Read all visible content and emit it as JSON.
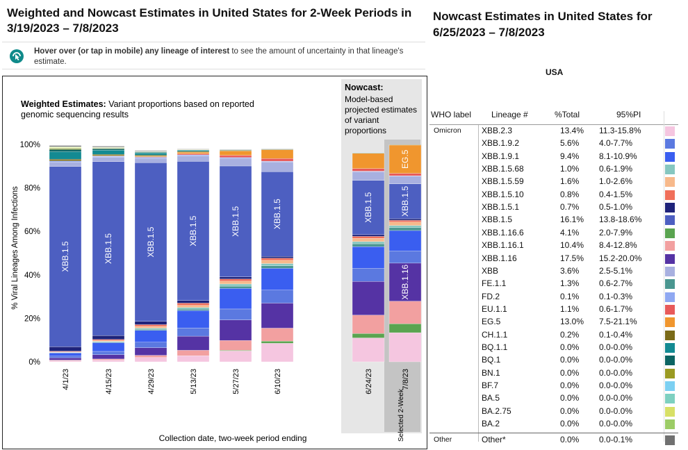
{
  "left_title": "Weighted and Nowcast Estimates in United States for 2-Week Periods in 3/19/2023 – 7/8/2023",
  "hint": {
    "bold": "Hover over (or tap in mobile) any lineage of interest",
    "rest": " to see the amount of uncertainty in that lineage's estimate.",
    "icon": "hover-pointer-icon"
  },
  "weighted_heading": {
    "bold": "Weighted Estimates:",
    "rest": " Variant proportions based on reported genomic sequencing results"
  },
  "nowcast_heading": {
    "bold": "Nowcast:",
    "rest": "Model-based projected estimates of variant proportions"
  },
  "selected_label": "Selected 2-Week",
  "right_title": "Nowcast Estimates in United States for 6/25/2023 – 7/8/2023",
  "region": "USA",
  "table": {
    "headers": [
      "WHO label",
      "Lineage #",
      "%Total",
      "95%PI"
    ],
    "rows": [
      {
        "who": "Omicron",
        "lineage": "XBB.2.3",
        "total": "13.4%",
        "pi": "11.3-15.8%",
        "color": "#f5c6e0"
      },
      {
        "who": "",
        "lineage": "XBB.1.9.2",
        "total": "5.6%",
        "pi": "4.0-7.7%",
        "color": "#5b79e0"
      },
      {
        "who": "",
        "lineage": "XBB.1.9.1",
        "total": "9.4%",
        "pi": "8.1-10.9%",
        "color": "#3a5ef0"
      },
      {
        "who": "",
        "lineage": "XBB.1.5.68",
        "total": "1.0%",
        "pi": "0.6-1.9%",
        "color": "#86c7c0"
      },
      {
        "who": "",
        "lineage": "XBB.1.5.59",
        "total": "1.6%",
        "pi": "1.0-2.6%",
        "color": "#f7b98b"
      },
      {
        "who": "",
        "lineage": "XBB.1.5.10",
        "total": "0.8%",
        "pi": "0.4-1.5%",
        "color": "#f06f5a"
      },
      {
        "who": "",
        "lineage": "XBB.1.5.1",
        "total": "0.7%",
        "pi": "0.5-1.0%",
        "color": "#1f237a"
      },
      {
        "who": "",
        "lineage": "XBB.1.5",
        "total": "16.1%",
        "pi": "13.8-18.6%",
        "color": "#4d5fc1"
      },
      {
        "who": "",
        "lineage": "XBB.1.16.6",
        "total": "4.1%",
        "pi": "2.0-7.9%",
        "color": "#5aa450"
      },
      {
        "who": "",
        "lineage": "XBB.1.16.1",
        "total": "10.4%",
        "pi": "8.4-12.8%",
        "color": "#f2a0a0"
      },
      {
        "who": "",
        "lineage": "XBB.1.16",
        "total": "17.5%",
        "pi": "15.2-20.0%",
        "color": "#5533a4"
      },
      {
        "who": "",
        "lineage": "XBB",
        "total": "3.6%",
        "pi": "2.5-5.1%",
        "color": "#a8b0e0"
      },
      {
        "who": "",
        "lineage": "FE.1.1",
        "total": "1.3%",
        "pi": "0.6-2.7%",
        "color": "#4a9690"
      },
      {
        "who": "",
        "lineage": "FD.2",
        "total": "0.1%",
        "pi": "0.1-0.3%",
        "color": "#8fa8f2"
      },
      {
        "who": "",
        "lineage": "EU.1.1",
        "total": "1.1%",
        "pi": "0.6-1.7%",
        "color": "#e85a5a"
      },
      {
        "who": "",
        "lineage": "EG.5",
        "total": "13.0%",
        "pi": "7.5-21.1%",
        "color": "#f0962e"
      },
      {
        "who": "",
        "lineage": "CH.1.1",
        "total": "0.2%",
        "pi": "0.1-0.4%",
        "color": "#7a6a18"
      },
      {
        "who": "",
        "lineage": "BQ.1.1",
        "total": "0.0%",
        "pi": "0.0-0.0%",
        "color": "#138a92"
      },
      {
        "who": "",
        "lineage": "BQ.1",
        "total": "0.0%",
        "pi": "0.0-0.0%",
        "color": "#0c6462"
      },
      {
        "who": "",
        "lineage": "BN.1",
        "total": "0.0%",
        "pi": "0.0-0.0%",
        "color": "#9a9a22"
      },
      {
        "who": "",
        "lineage": "BF.7",
        "total": "0.0%",
        "pi": "0.0-0.0%",
        "color": "#7cd0f2"
      },
      {
        "who": "",
        "lineage": "BA.5",
        "total": "0.0%",
        "pi": "0.0-0.0%",
        "color": "#7ed0c0"
      },
      {
        "who": "",
        "lineage": "BA.2.75",
        "total": "0.0%",
        "pi": "0.0-0.0%",
        "color": "#d8e066"
      },
      {
        "who": "",
        "lineage": "BA.2",
        "total": "0.0%",
        "pi": "0.0-0.0%",
        "color": "#9ccc66"
      },
      {
        "who": "Other",
        "lineage": "Other*",
        "total": "0.0%",
        "pi": "0.0-0.1%",
        "color": "#707070"
      }
    ]
  },
  "chart_data": {
    "type": "bar",
    "stacked": true,
    "ylabel": "% Viral Lineages Among Infections",
    "xlabel": "Collection date, two-week period ending",
    "ylim": [
      0,
      100
    ],
    "yticks": [
      "0%",
      "20%",
      "40%",
      "60%",
      "80%",
      "100%"
    ],
    "categories": [
      "4/1/23",
      "4/15/23",
      "4/29/23",
      "5/13/23",
      "5/27/23",
      "6/10/23",
      "6/24/23",
      "7/8/23"
    ],
    "nowcast_categories": [
      "6/24/23",
      "7/8/23"
    ],
    "selected_category": "7/8/23",
    "series": [
      {
        "name": "XBB.2.3",
        "color": "#f5c6e0",
        "values": [
          0.5,
          0.8,
          2,
          2.8,
          5,
          8.5,
          11,
          13.4
        ]
      },
      {
        "name": "XBB.1.16.6",
        "color": "#5aa450",
        "values": [
          0,
          0,
          0,
          0,
          0.3,
          1,
          2,
          4.1
        ]
      },
      {
        "name": "XBB.1.16.1",
        "color": "#f2a0a0",
        "values": [
          0.3,
          0.5,
          1,
          2.5,
          4.5,
          6,
          8.5,
          10.4
        ]
      },
      {
        "name": "XBB.1.16",
        "color": "#5533a4",
        "values": [
          1,
          2,
          3.5,
          6.5,
          9.5,
          11.5,
          15.5,
          17.5
        ]
      },
      {
        "name": "XBB.1.9.2",
        "color": "#5b79e0",
        "values": [
          0.8,
          1.5,
          2.5,
          3.8,
          5,
          6,
          6,
          5.6
        ]
      },
      {
        "name": "XBB.1.9.1",
        "color": "#3a5ef0",
        "values": [
          1.5,
          4,
          5.5,
          8,
          9.5,
          10,
          10,
          9.4
        ]
      },
      {
        "name": "FE.1.1",
        "color": "#4a9690",
        "values": [
          0.1,
          0.2,
          0.4,
          0.6,
          1,
          1.2,
          1.3,
          1.3
        ]
      },
      {
        "name": "XBB.1.5.68",
        "color": "#86c7c0",
        "values": [
          0.2,
          0.4,
          0.6,
          0.8,
          1,
          1,
          1,
          1
        ]
      },
      {
        "name": "XBB.1.5.59",
        "color": "#f7b98b",
        "values": [
          0.2,
          0.4,
          0.8,
          1,
          1.3,
          1.5,
          1.5,
          1.6
        ]
      },
      {
        "name": "XBB.1.5.10",
        "color": "#f06f5a",
        "values": [
          0.3,
          0.5,
          0.8,
          1,
          1,
          1,
          0.9,
          0.8
        ]
      },
      {
        "name": "XBB.1.5.1",
        "color": "#1f237a",
        "values": [
          2,
          1.8,
          1.5,
          1.2,
          1,
          0.8,
          0.8,
          0.7
        ]
      },
      {
        "name": "XBB.1.5",
        "color": "#4d5fc1",
        "values": [
          83,
          80,
          73,
          64,
          51,
          39,
          25,
          16.1
        ]
      },
      {
        "name": "XBB",
        "color": "#a8b0e0",
        "values": [
          2,
          2,
          2,
          2.5,
          3.5,
          4.5,
          4,
          3.6
        ]
      },
      {
        "name": "FD.2",
        "color": "#8fa8f2",
        "values": [
          0.5,
          0.5,
          0.5,
          0.5,
          0.4,
          0.3,
          0.2,
          0.1
        ]
      },
      {
        "name": "EU.1.1",
        "color": "#e85a5a",
        "values": [
          0,
          0.1,
          0.2,
          0.5,
          1,
          1.2,
          1.2,
          1.1
        ]
      },
      {
        "name": "EG.5",
        "color": "#f0962e",
        "values": [
          0,
          0.1,
          0.3,
          0.7,
          2,
          4,
          7,
          13
        ]
      },
      {
        "name": "CH.1.1",
        "color": "#7a6a18",
        "values": [
          0.8,
          0.6,
          0.5,
          0.4,
          0.3,
          0.3,
          0.2,
          0.2
        ]
      },
      {
        "name": "BQ.1.1",
        "color": "#138a92",
        "values": [
          3.5,
          2,
          1,
          0.5,
          0.2,
          0.1,
          0.05,
          0
        ]
      },
      {
        "name": "BQ.1",
        "color": "#0c6462",
        "values": [
          1,
          0.6,
          0.3,
          0.2,
          0.1,
          0,
          0,
          0
        ]
      },
      {
        "name": "BN.1",
        "color": "#9a9a22",
        "values": [
          0.5,
          0.3,
          0.2,
          0.1,
          0,
          0,
          0,
          0
        ]
      },
      {
        "name": "BF.7",
        "color": "#7cd0f2",
        "values": [
          0.2,
          0.1,
          0.1,
          0,
          0,
          0,
          0,
          0
        ]
      },
      {
        "name": "BA.5",
        "color": "#7ed0c0",
        "values": [
          0.1,
          0.1,
          0,
          0,
          0,
          0,
          0,
          0
        ]
      },
      {
        "name": "BA.2.75",
        "color": "#d8e066",
        "values": [
          0.3,
          0.2,
          0.1,
          0.1,
          0,
          0,
          0,
          0
        ]
      },
      {
        "name": "BA.2",
        "color": "#9ccc66",
        "values": [
          0.2,
          0.1,
          0.1,
          0,
          0,
          0,
          0,
          0
        ]
      },
      {
        "name": "Other*",
        "color": "#707070",
        "values": [
          0.5,
          0.4,
          0.3,
          0.2,
          0.1,
          0.1,
          0,
          0
        ]
      }
    ],
    "bar_labels": [
      {
        "category": "4/1/23",
        "series": "XBB.1.5",
        "text": "XBB.1.5"
      },
      {
        "category": "4/15/23",
        "series": "XBB.1.5",
        "text": "XBB.1.5"
      },
      {
        "category": "4/29/23",
        "series": "XBB.1.5",
        "text": "XBB.1.5"
      },
      {
        "category": "5/13/23",
        "series": "XBB.1.5",
        "text": "XBB.1.5"
      },
      {
        "category": "5/27/23",
        "series": "XBB.1.5",
        "text": "XBB.1.5"
      },
      {
        "category": "6/10/23",
        "series": "XBB.1.5",
        "text": "XBB.1.5"
      },
      {
        "category": "6/24/23",
        "series": "XBB.1.5",
        "text": "XBB.1.5"
      },
      {
        "category": "7/8/23",
        "series": "XBB.1.5",
        "text": "XBB.1.5"
      },
      {
        "category": "7/8/23",
        "series": "XBB.1.16",
        "text": "XBB.1.16"
      },
      {
        "category": "7/8/23",
        "series": "EG.5",
        "text": "EG.5"
      }
    ]
  }
}
